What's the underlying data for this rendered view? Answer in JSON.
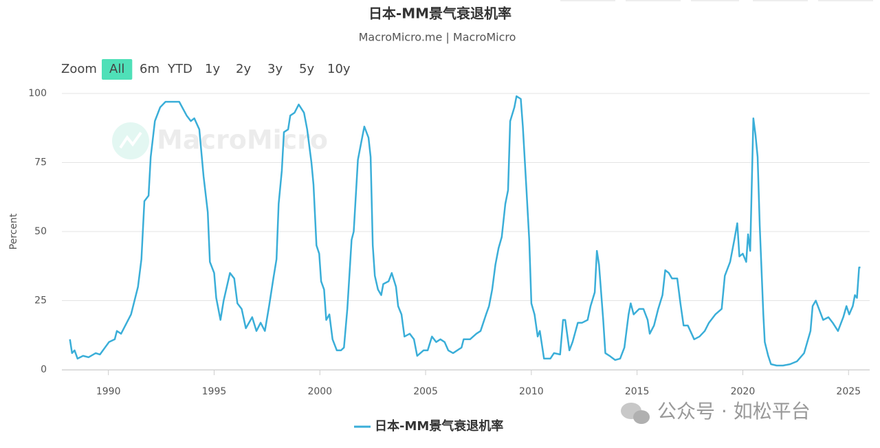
{
  "chart_data": {
    "type": "line",
    "title": "日本-MM景气衰退机率",
    "subtitle": "MacroMicro.me | MacroMicro",
    "y_label": "Percent",
    "watermark": "MacroMicro",
    "overlay_text": "公众号 · 如松平台",
    "range_selector": {
      "label": "Zoom",
      "buttons": [
        "All",
        "6m",
        "YTD",
        "1y",
        "2y",
        "3y",
        "5y",
        "10y"
      ],
      "selected": 0
    },
    "x": [
      1988.18,
      1988.28,
      1988.4,
      1988.54,
      1988.8,
      1989.06,
      1989.4,
      1989.6,
      1989.84,
      1990.03,
      1990.3,
      1990.4,
      1990.6,
      1991.07,
      1991.4,
      1991.56,
      1991.7,
      1991.9,
      1992.0,
      1992.2,
      1992.45,
      1992.7,
      1993.0,
      1993.35,
      1993.7,
      1993.9,
      1994.06,
      1994.3,
      1994.5,
      1994.7,
      1994.8,
      1995.0,
      1995.1,
      1995.3,
      1995.45,
      1995.75,
      1995.95,
      1996.1,
      1996.3,
      1996.5,
      1996.8,
      1997.0,
      1997.2,
      1997.4,
      1997.6,
      1997.8,
      1997.95,
      1998.05,
      1998.2,
      1998.3,
      1998.5,
      1998.6,
      1998.8,
      1999.0,
      1999.25,
      1999.4,
      1999.6,
      1999.7,
      1999.84,
      1999.97,
      2000.06,
      2000.2,
      2000.3,
      2000.45,
      2000.6,
      2000.8,
      2001.0,
      2001.14,
      2001.3,
      2001.5,
      2001.6,
      2001.8,
      2001.95,
      2002.1,
      2002.3,
      2002.4,
      2002.5,
      2002.6,
      2002.75,
      2002.9,
      2003.0,
      2003.25,
      2003.4,
      2003.6,
      2003.7,
      2003.86,
      2004.0,
      2004.25,
      2004.45,
      2004.6,
      2004.9,
      2005.1,
      2005.3,
      2005.5,
      2005.7,
      2005.9,
      2006.07,
      2006.3,
      2006.7,
      2006.8,
      2007.1,
      2007.4,
      2007.6,
      2007.86,
      2008.0,
      2008.15,
      2008.3,
      2008.45,
      2008.6,
      2008.77,
      2008.9,
      2009.0,
      2009.2,
      2009.3,
      2009.5,
      2009.6,
      2009.77,
      2009.9,
      2010.0,
      2010.15,
      2010.3,
      2010.4,
      2010.6,
      2010.9,
      2011.07,
      2011.36,
      2011.5,
      2011.6,
      2011.8,
      2011.95,
      2012.2,
      2012.4,
      2012.66,
      2012.8,
      2013.0,
      2013.1,
      2013.2,
      2013.4,
      2013.5,
      2013.7,
      2013.96,
      2014.2,
      2014.4,
      2014.6,
      2014.7,
      2014.84,
      2015.1,
      2015.3,
      2015.5,
      2015.6,
      2015.8,
      2016.0,
      2016.2,
      2016.33,
      2016.5,
      2016.65,
      2016.9,
      2017.05,
      2017.2,
      2017.4,
      2017.7,
      2017.95,
      2018.2,
      2018.4,
      2018.7,
      2019.0,
      2019.15,
      2019.4,
      2019.6,
      2019.74,
      2019.84,
      2020.0,
      2020.16,
      2020.25,
      2020.35,
      2020.5,
      2020.6,
      2020.7,
      2020.8,
      2020.97,
      2021.04,
      2021.2,
      2021.33,
      2021.6,
      2021.9,
      2022.24,
      2022.56,
      2022.9,
      2023.2,
      2023.3,
      2023.45,
      2023.6,
      2023.8,
      2024.05,
      2024.25,
      2024.5,
      2024.75,
      2024.9,
      2025.03,
      2025.2,
      2025.3,
      2025.4,
      2025.5,
      2025.56
    ],
    "series": [
      {
        "name": "日本-MM景气衰退机率",
        "color": "#3aaed8",
        "values": [
          11,
          6,
          7,
          4,
          5,
          4.5,
          6,
          5.5,
          8,
          10,
          11,
          14,
          13,
          20,
          30,
          40,
          61,
          63,
          77,
          90,
          95,
          97,
          97,
          97,
          92,
          90,
          91,
          87,
          70,
          57,
          39,
          35,
          26,
          18,
          25,
          35,
          33,
          24,
          22,
          15,
          19,
          14,
          17,
          14,
          23,
          33,
          40,
          60,
          72,
          86,
          87,
          92,
          93,
          96,
          93,
          87,
          75,
          67,
          45,
          42,
          32,
          29,
          18,
          20,
          11,
          7,
          7,
          8,
          22,
          47,
          50,
          76,
          82,
          88,
          84,
          77,
          45,
          34,
          29,
          27,
          31,
          32,
          35,
          30,
          23,
          20,
          12,
          13,
          11,
          5,
          7,
          7,
          12,
          10,
          11,
          10,
          7,
          6,
          8,
          11,
          11,
          13,
          14,
          20,
          23,
          29,
          38,
          44,
          48,
          60,
          65,
          90,
          95,
          99,
          98,
          88,
          65,
          47,
          24,
          20,
          12,
          14,
          4,
          4,
          6,
          5.5,
          18,
          18,
          7,
          10,
          17,
          17,
          18,
          23,
          28,
          43,
          38,
          18,
          6,
          5,
          3.5,
          4,
          8,
          20,
          24,
          20,
          22,
          22,
          18,
          13,
          16,
          22,
          27,
          36,
          35,
          33,
          33,
          24,
          16,
          16,
          11,
          12,
          14,
          17,
          20,
          22,
          34,
          39,
          47,
          53,
          41,
          42,
          39,
          49,
          43,
          91,
          85,
          77,
          52,
          20,
          10,
          5,
          2,
          1.5,
          1.5,
          2,
          3,
          6,
          14,
          23,
          25,
          22,
          18,
          19,
          17,
          14,
          19,
          23,
          20,
          23,
          27,
          26,
          37,
          37
        ]
      }
    ],
    "xlim": [
      1987.8,
      2026
    ],
    "xticks": [
      1990,
      1995,
      2000,
      2005,
      2010,
      2015,
      2020,
      2025
    ],
    "ylim": [
      0,
      100
    ],
    "yticks": [
      0,
      25,
      50,
      75,
      100
    ],
    "grid": true,
    "legend": "bottom"
  }
}
